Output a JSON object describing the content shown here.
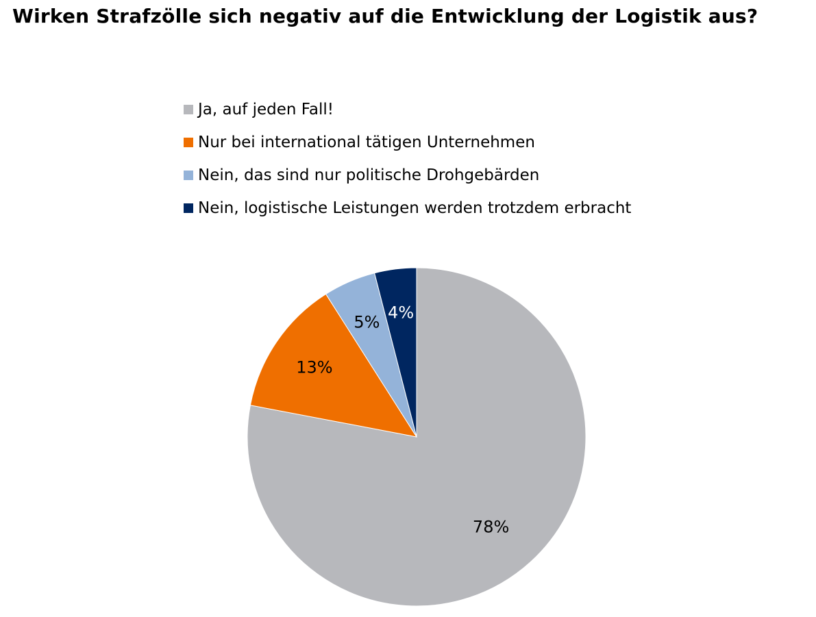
{
  "chart_data": {
    "type": "pie",
    "title": "Wirken Strafzölle sich negativ auf die Entwicklung der Logistik aus?",
    "legend_position": "top",
    "start_angle": "12 o'clock",
    "direction": "clockwise",
    "slices": [
      {
        "name": "Ja, auf jeden Fall!",
        "value": 78,
        "label": "78%",
        "color": "#B7B8BC",
        "label_color": "#000000"
      },
      {
        "name": "Nur bei international tätigen Unternehmen",
        "value": 13,
        "label": "13%",
        "color": "#EF6F00",
        "label_color": "#000000"
      },
      {
        "name": "Nein, das sind nur politische Drohgebärden",
        "value": 5,
        "label": "5%",
        "color": "#94B3D9",
        "label_color": "#000000"
      },
      {
        "name": "Nein, logistische Leistungen werden trotzdem erbracht",
        "value": 4,
        "label": "4%",
        "color": "#002660",
        "label_color": "#FFFFFF"
      }
    ]
  }
}
